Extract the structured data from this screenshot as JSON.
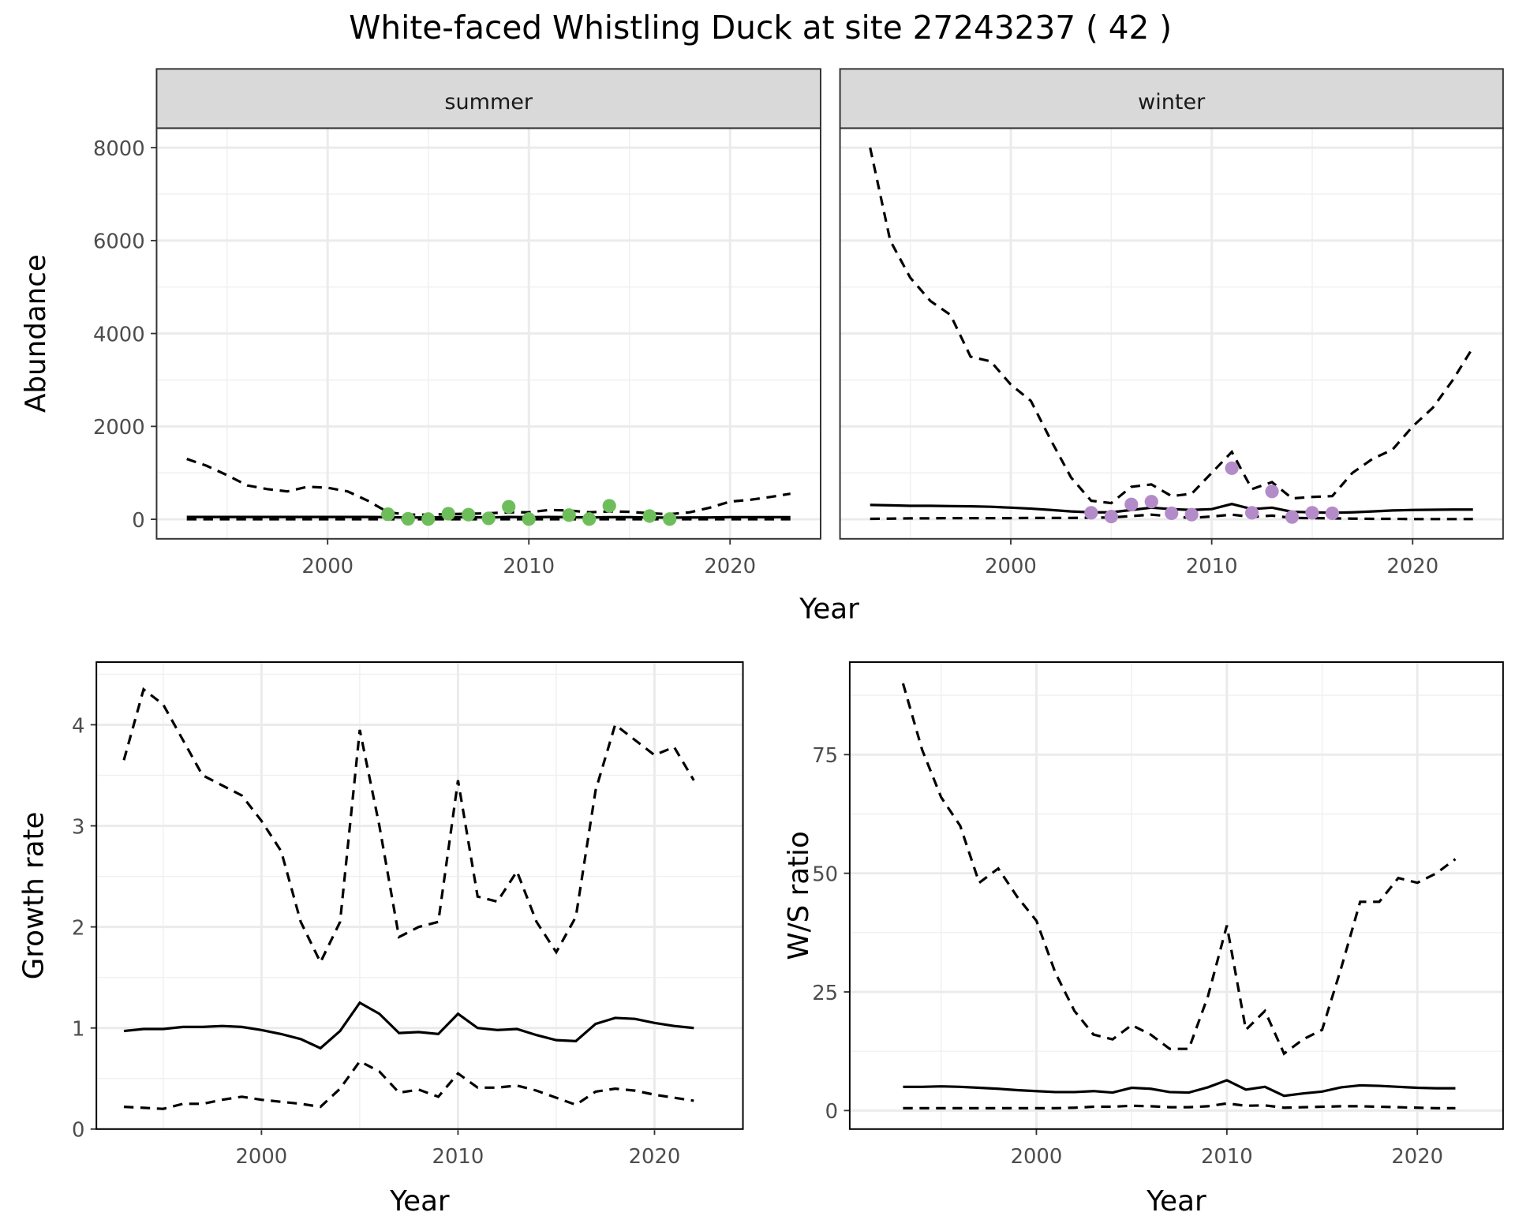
{
  "title": "White-faced Whistling Duck at site 27243237 ( 42 )",
  "chart_data": [
    {
      "type": "line",
      "panel": "summer",
      "strip": "summer",
      "xlabel": "Year",
      "ylabel": "Abundance",
      "xlim": [
        1991.5,
        2024.5
      ],
      "ylim": [
        -420,
        8420
      ],
      "xticks": [
        2000,
        2010,
        2020
      ],
      "yticks": [
        0,
        2000,
        4000,
        6000,
        8000
      ],
      "grid": true,
      "years": [
        1993,
        1994,
        1995,
        1996,
        1997,
        1998,
        1999,
        2000,
        2001,
        2002,
        2003,
        2004,
        2005,
        2006,
        2007,
        2008,
        2009,
        2010,
        2011,
        2012,
        2013,
        2014,
        2015,
        2016,
        2017,
        2018,
        2019,
        2020,
        2021,
        2022,
        2023
      ],
      "upper": [
        1300,
        1150,
        950,
        730,
        650,
        600,
        700,
        680,
        600,
        400,
        150,
        100,
        100,
        110,
        120,
        130,
        150,
        150,
        200,
        190,
        150,
        170,
        160,
        130,
        110,
        150,
        250,
        380,
        420,
        480,
        550
      ],
      "mid": [
        50,
        50,
        50,
        50,
        50,
        50,
        50,
        50,
        50,
        50,
        45,
        40,
        40,
        45,
        45,
        40,
        50,
        45,
        50,
        45,
        40,
        45,
        45,
        40,
        35,
        40,
        40,
        45,
        45,
        45,
        45
      ],
      "lower": [
        0,
        0,
        0,
        0,
        0,
        0,
        0,
        0,
        0,
        0,
        0,
        0,
        0,
        0,
        0,
        0,
        0,
        0,
        0,
        0,
        0,
        0,
        0,
        0,
        0,
        0,
        0,
        0,
        0,
        0,
        0
      ],
      "points": {
        "color": "#6DBE5A",
        "x": [
          2003,
          2004,
          2005,
          2006,
          2007,
          2008,
          2009,
          2010,
          2012,
          2013,
          2014,
          2016,
          2017
        ],
        "y": [
          110,
          10,
          5,
          120,
          100,
          20,
          270,
          5,
          90,
          5,
          290,
          70,
          5
        ]
      }
    },
    {
      "type": "line",
      "panel": "winter",
      "strip": "winter",
      "xlabel": "Year",
      "xlim": [
        1991.5,
        2024.5
      ],
      "ylim": [
        -420,
        8420
      ],
      "xticks": [
        2000,
        2010,
        2020
      ],
      "grid": true,
      "years": [
        1993,
        1994,
        1995,
        1996,
        1997,
        1998,
        1999,
        2000,
        2001,
        2002,
        2003,
        2004,
        2005,
        2006,
        2007,
        2008,
        2009,
        2010,
        2011,
        2012,
        2013,
        2014,
        2015,
        2016,
        2017,
        2018,
        2019,
        2020,
        2021,
        2022,
        2023
      ],
      "upper": [
        8000,
        6000,
        5200,
        4700,
        4400,
        3500,
        3400,
        2900,
        2550,
        1700,
        900,
        400,
        350,
        700,
        750,
        500,
        550,
        1000,
        1450,
        650,
        800,
        450,
        480,
        500,
        1000,
        1300,
        1500,
        2000,
        2400,
        3000,
        3700
      ],
      "mid": [
        310,
        300,
        290,
        290,
        285,
        280,
        270,
        250,
        230,
        200,
        170,
        150,
        150,
        200,
        250,
        220,
        200,
        220,
        330,
        220,
        250,
        160,
        150,
        140,
        150,
        170,
        190,
        200,
        205,
        210,
        210
      ],
      "lower": [
        10,
        15,
        20,
        20,
        25,
        25,
        25,
        25,
        30,
        30,
        30,
        35,
        40,
        70,
        100,
        60,
        30,
        60,
        100,
        50,
        80,
        30,
        25,
        20,
        15,
        10,
        10,
        5,
        5,
        5,
        5
      ],
      "points": {
        "color": "#B48BC9",
        "x": [
          2004,
          2005,
          2006,
          2007,
          2008,
          2009,
          2011,
          2012,
          2013,
          2014,
          2015,
          2016
        ],
        "y": [
          140,
          60,
          320,
          380,
          130,
          100,
          1100,
          140,
          600,
          50,
          140,
          130
        ]
      }
    },
    {
      "type": "line",
      "panel": "growth",
      "xlabel": "Year",
      "ylabel": "Growth rate",
      "xlim": [
        1991.6,
        2024.5
      ],
      "ylim": [
        0,
        4.62
      ],
      "xticks": [
        2000,
        2010,
        2020
      ],
      "yticks": [
        0,
        1,
        2,
        3,
        4
      ],
      "grid": true,
      "years": [
        1993,
        1994,
        1995,
        1996,
        1997,
        1998,
        1999,
        2000,
        2001,
        2002,
        2003,
        2004,
        2005,
        2006,
        2007,
        2008,
        2009,
        2010,
        2011,
        2012,
        2013,
        2014,
        2015,
        2016,
        2017,
        2018,
        2019,
        2020,
        2021,
        2022
      ],
      "upper": [
        3.65,
        4.35,
        4.2,
        3.85,
        3.5,
        3.4,
        3.3,
        3.05,
        2.75,
        2.05,
        1.65,
        2.05,
        3.95,
        3.0,
        1.9,
        2.0,
        2.05,
        3.45,
        2.3,
        2.25,
        2.55,
        2.05,
        1.75,
        2.1,
        3.35,
        4.0,
        3.85,
        3.7,
        3.78,
        3.45
      ],
      "mid": [
        0.97,
        0.99,
        0.99,
        1.01,
        1.01,
        1.02,
        1.01,
        0.98,
        0.94,
        0.89,
        0.8,
        0.97,
        1.25,
        1.14,
        0.95,
        0.96,
        0.94,
        1.14,
        1.0,
        0.98,
        0.99,
        0.93,
        0.88,
        0.87,
        1.04,
        1.1,
        1.09,
        1.05,
        1.02,
        1.0
      ],
      "lower": [
        0.22,
        0.21,
        0.2,
        0.25,
        0.25,
        0.29,
        0.32,
        0.29,
        0.27,
        0.25,
        0.22,
        0.4,
        0.67,
        0.57,
        0.36,
        0.39,
        0.32,
        0.55,
        0.41,
        0.41,
        0.43,
        0.38,
        0.31,
        0.24,
        0.37,
        0.4,
        0.38,
        0.34,
        0.31,
        0.28
      ]
    },
    {
      "type": "line",
      "panel": "ratio",
      "xlabel": "Year",
      "ylabel": "W/S ratio",
      "xlim": [
        1990.2,
        2024.5
      ],
      "ylim": [
        -3.9,
        94.5
      ],
      "xticks": [
        2000,
        2010,
        2020
      ],
      "yticks": [
        0,
        25,
        50,
        75
      ],
      "grid": true,
      "years": [
        1993,
        1994,
        1995,
        1996,
        1997,
        1998,
        1999,
        2000,
        2001,
        2002,
        2003,
        2004,
        2005,
        2006,
        2007,
        2008,
        2009,
        2010,
        2011,
        2012,
        2013,
        2014,
        2015,
        2016,
        2017,
        2018,
        2019,
        2020,
        2021,
        2022
      ],
      "upper": [
        90,
        76,
        66,
        60,
        48,
        51,
        45,
        40,
        29,
        21,
        16,
        15,
        18,
        16,
        13,
        13,
        24,
        39,
        17,
        21,
        12,
        15,
        17,
        30,
        44,
        44,
        49,
        48,
        50,
        53
      ],
      "mid": [
        5.0,
        5.0,
        5.1,
        5.0,
        4.8,
        4.6,
        4.3,
        4.1,
        3.9,
        3.9,
        4.1,
        3.8,
        4.8,
        4.6,
        3.9,
        3.8,
        4.9,
        6.4,
        4.4,
        5.0,
        3.1,
        3.6,
        4.0,
        4.9,
        5.3,
        5.2,
        5.0,
        4.8,
        4.7,
        4.7
      ],
      "lower": [
        0.5,
        0.5,
        0.5,
        0.5,
        0.5,
        0.5,
        0.5,
        0.5,
        0.5,
        0.6,
        0.8,
        0.8,
        1.0,
        0.9,
        0.7,
        0.7,
        0.9,
        1.5,
        1.0,
        1.1,
        0.6,
        0.7,
        0.8,
        0.9,
        0.9,
        0.8,
        0.7,
        0.6,
        0.5,
        0.5
      ]
    }
  ]
}
